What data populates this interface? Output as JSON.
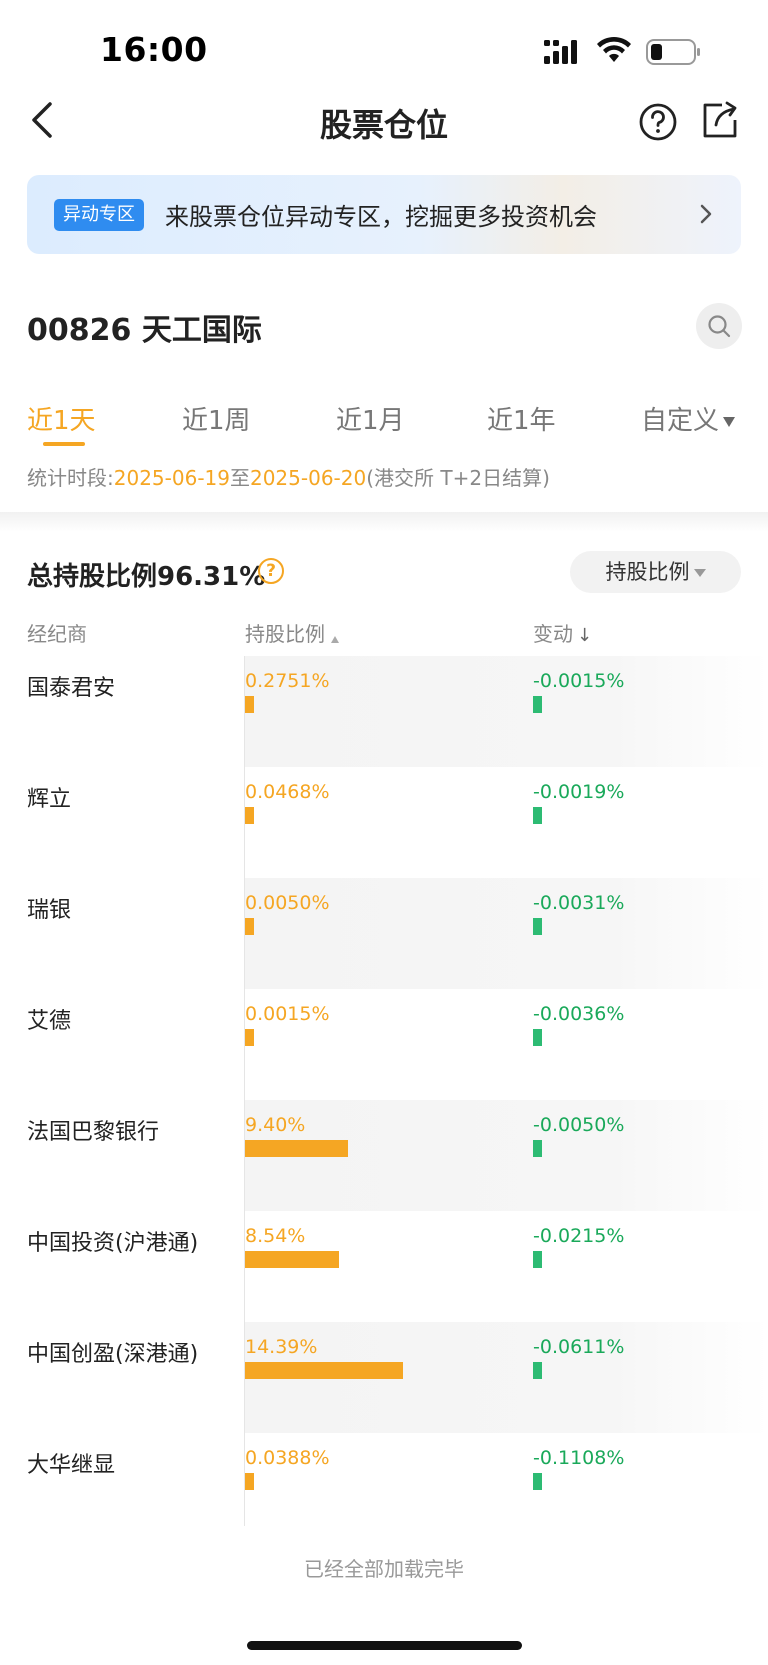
{
  "status_bar": {
    "time": "16:00"
  },
  "nav": {
    "title": "股票仓位"
  },
  "banner": {
    "badge": "异动专区",
    "text": "来股票仓位异动专区，挖掘更多投资机会"
  },
  "stock": {
    "title": "00826 天工国际"
  },
  "tabs": [
    {
      "label": "近1天",
      "active": true
    },
    {
      "label": "近1周",
      "active": false
    },
    {
      "label": "近1月",
      "active": false
    },
    {
      "label": "近1年",
      "active": false
    },
    {
      "label": "自定义",
      "active": false
    }
  ],
  "period": {
    "prefix": "统计时段:",
    "start": "2025-06-19",
    "to": "至",
    "end": "2025-06-20",
    "note": "(港交所 T+2日结算)"
  },
  "summary": {
    "total": "总持股比例96.31%",
    "help": "?",
    "sort_label": "持股比例"
  },
  "table": {
    "headers": {
      "broker": "经纪商",
      "ratio": "持股比例",
      "change": "变动"
    },
    "rows": [
      {
        "broker": "国泰君安",
        "ratio": "0.2751%",
        "ratio_value": 0.2751,
        "change": "-0.0015%",
        "shaded": true
      },
      {
        "broker": "辉立",
        "ratio": "0.0468%",
        "ratio_value": 0.0468,
        "change": "-0.0019%",
        "shaded": false
      },
      {
        "broker": "瑞银",
        "ratio": "0.0050%",
        "ratio_value": 0.005,
        "change": "-0.0031%",
        "shaded": true
      },
      {
        "broker": "艾德",
        "ratio": "0.0015%",
        "ratio_value": 0.0015,
        "change": "-0.0036%",
        "shaded": false
      },
      {
        "broker": "法国巴黎银行",
        "ratio": "9.40%",
        "ratio_value": 9.4,
        "change": "-0.0050%",
        "shaded": true
      },
      {
        "broker": "中国投资(沪港通)",
        "ratio": "8.54%",
        "ratio_value": 8.54,
        "change": "-0.0215%",
        "shaded": false
      },
      {
        "broker": "中国创盈(深港通)",
        "ratio": "14.39%",
        "ratio_value": 14.39,
        "change": "-0.0611%",
        "shaded": true
      },
      {
        "broker": "大华继显",
        "ratio": "0.0388%",
        "ratio_value": 0.0388,
        "change": "-0.1108%",
        "shaded": false
      }
    ]
  },
  "footer": {
    "text": "已经全部加载完毕"
  },
  "colors": {
    "accent": "#f5a623",
    "negative": "#1aa95a",
    "badge": "#2f8cf0"
  }
}
